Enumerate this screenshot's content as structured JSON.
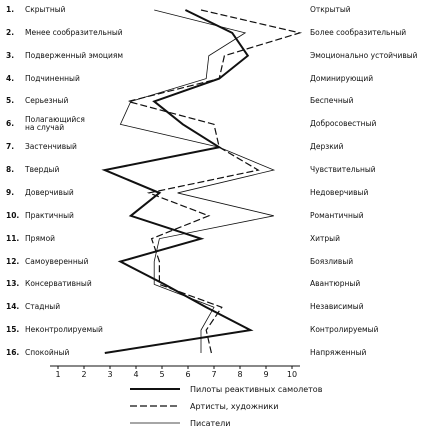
{
  "chart_data": {
    "type": "line",
    "orientation": "horizontal",
    "row_numbers": [
      "1.",
      "2.",
      "3.",
      "4.",
      "5.",
      "6.",
      "7.",
      "8.",
      "9.",
      "10.",
      "11.",
      "12.",
      "13.",
      "14.",
      "15.",
      "16."
    ],
    "categories": [
      "Скрытный",
      "Менее сообразительный",
      "Подверженный  эмоциям",
      "Подчиненный",
      "Серьезный",
      "Полагающийся\nна случай",
      "Застенчивый",
      "Твердый",
      "Доверчивый",
      "Практичный",
      "Прямой",
      "Самоуверенный",
      "Консервативный",
      "Стадный",
      "Неконтролируемый",
      "Спокойный"
    ],
    "right_categories": [
      "Открытый",
      "Более сообразительный",
      "Эмоционально  устойчивый",
      "Доминирующий",
      "Беспечный",
      "Добросовестный",
      "Дерзкий",
      "Чувствительный",
      "Недоверчивый",
      "Романтичный",
      "Хитрый",
      "Боязливый",
      "Авантюрный",
      "Независимый",
      "Контролируемый",
      "Напряженный"
    ],
    "xlim": [
      1,
      10
    ],
    "xticks": [
      1,
      2,
      3,
      4,
      5,
      6,
      7,
      8,
      9,
      10
    ],
    "series": [
      {
        "name": "Пилоты  реактивных самолетов",
        "color": "#111",
        "style": "solid",
        "width": 2,
        "values": [
          5.9,
          7.7,
          8.3,
          7.2,
          4.7,
          5.8,
          7.2,
          2.8,
          4.9,
          3.8,
          6.5,
          3.4,
          5.1,
          6.7,
          8.4,
          2.8
        ]
      },
      {
        "name": "Артисты, художники",
        "color": "#111",
        "style": "dashed",
        "width": 1.2,
        "values": [
          6.5,
          10.3,
          7.4,
          7.2,
          3.7,
          7.0,
          7.2,
          8.7,
          4.5,
          6.8,
          4.6,
          4.9,
          4.9,
          7.3,
          6.7,
          6.9
        ]
      },
      {
        "name": "Писатели",
        "color": "#111",
        "style": "thin",
        "width": 0.8,
        "values": [
          4.7,
          8.2,
          6.8,
          6.7,
          3.8,
          3.4,
          7.2,
          9.3,
          5.6,
          9.3,
          4.9,
          4.7,
          4.7,
          7.0,
          6.5,
          6.5
        ]
      }
    ]
  }
}
